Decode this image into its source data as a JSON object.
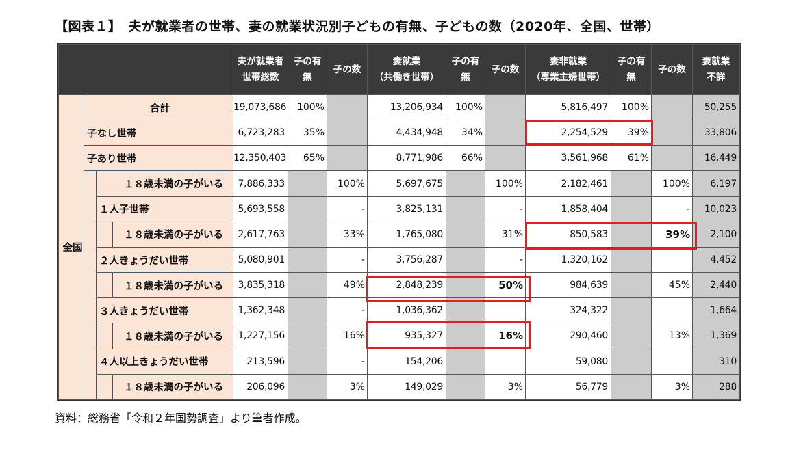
{
  "title": "【図表１】　夫が就業者の世帯、妻の就業状況別子どもの有無、子どもの数（2020年、全国、世帯）",
  "headers": {
    "h1": [
      "夫が就業者",
      "世帯総数"
    ],
    "h2": [
      "子の有",
      "無"
    ],
    "h3": [
      "子の数"
    ],
    "h4": [
      "妻就業",
      "（共働き世帯）"
    ],
    "h5": [
      "子の有",
      "無"
    ],
    "h6": [
      "子の数"
    ],
    "h7": [
      "妻非就業",
      "（専業主婦世帯）"
    ],
    "h8": [
      "子の有",
      "無"
    ],
    "h9": [
      "子の数"
    ],
    "h10": [
      "妻就業",
      "不詳"
    ]
  },
  "region_label": "全国",
  "rows": [
    {
      "label": "合計",
      "total": "19,073,686",
      "t_has": "100%",
      "t_num": "",
      "w": "13,206,934",
      "w_has": "100%",
      "w_num": "",
      "n": "5,816,497",
      "n_has": "100%",
      "n_num": "",
      "u": "50,255"
    },
    {
      "label": "子なし世帯",
      "total": "6,723,283",
      "t_has": "35%",
      "t_num": "",
      "w": "4,434,948",
      "w_has": "34%",
      "w_num": "",
      "n": "2,254,529",
      "n_has": "39%",
      "n_num": "",
      "u": "33,806"
    },
    {
      "label": "子あり世帯",
      "total": "12,350,403",
      "t_has": "65%",
      "t_num": "",
      "w": "8,771,986",
      "w_has": "66%",
      "w_num": "",
      "n": "3,561,968",
      "n_has": "61%",
      "n_num": "",
      "u": "16,449"
    },
    {
      "label": "１８歳未満の子がいる",
      "total": "7,886,333",
      "t_has": "",
      "t_num": "100%",
      "w": "5,697,675",
      "w_has": "",
      "w_num": "100%",
      "n": "2,182,461",
      "n_has": "",
      "n_num": "100%",
      "u": "6,197"
    },
    {
      "label": "１人子世帯",
      "total": "5,693,558",
      "t_has": "",
      "t_num": "-",
      "w": "3,825,131",
      "w_has": "",
      "w_num": "-",
      "n": "1,858,404",
      "n_has": "",
      "n_num": "-",
      "u": "10,023"
    },
    {
      "label": "１８歳未満の子がいる",
      "total": "2,617,763",
      "t_has": "",
      "t_num": "33%",
      "w": "1,765,080",
      "w_has": "",
      "w_num": "31%",
      "n": "850,583",
      "n_has": "",
      "n_num": "39%",
      "u": "2,100"
    },
    {
      "label": "２人きょうだい世帯",
      "total": "5,080,901",
      "t_has": "",
      "t_num": "-",
      "w": "3,756,287",
      "w_has": "",
      "w_num": "-",
      "n": "1,320,162",
      "n_has": "",
      "n_num": "",
      "u": "4,452"
    },
    {
      "label": "１８歳未満の子がいる",
      "total": "3,835,318",
      "t_has": "",
      "t_num": "49%",
      "w": "2,848,239",
      "w_has": "",
      "w_num": "50%",
      "n": "984,639",
      "n_has": "",
      "n_num": "45%",
      "u": "2,440"
    },
    {
      "label": "３人きょうだい世帯",
      "total": "1,362,348",
      "t_has": "",
      "t_num": "-",
      "w": "1,036,362",
      "w_has": "",
      "w_num": "",
      "n": "324,322",
      "n_has": "",
      "n_num": "",
      "u": "1,664"
    },
    {
      "label": "１８歳未満の子がいる",
      "total": "1,227,156",
      "t_has": "",
      "t_num": "16%",
      "w": "935,327",
      "w_has": "",
      "w_num": "16%",
      "n": "290,460",
      "n_has": "",
      "n_num": "13%",
      "u": "1,369"
    },
    {
      "label": "４人以上きょうだい世帯",
      "total": "213,596",
      "t_has": "",
      "t_num": "-",
      "w": "154,206",
      "w_has": "",
      "w_num": "",
      "n": "59,080",
      "n_has": "",
      "n_num": "",
      "u": "310"
    },
    {
      "label": "１８歳未満の子がいる",
      "total": "206,096",
      "t_has": "",
      "t_num": "3%",
      "w": "149,029",
      "w_has": "",
      "w_num": "3%",
      "n": "56,779",
      "n_has": "",
      "n_num": "3%",
      "u": "288"
    }
  ],
  "source": "資料：総務省「令和２年国勢調査」より筆者作成。",
  "colors": {
    "header_bg": "#3a3a3a",
    "label_bg": "#fbe5d6",
    "gray_cell": "#cccccc",
    "highlight": "#e02020"
  }
}
